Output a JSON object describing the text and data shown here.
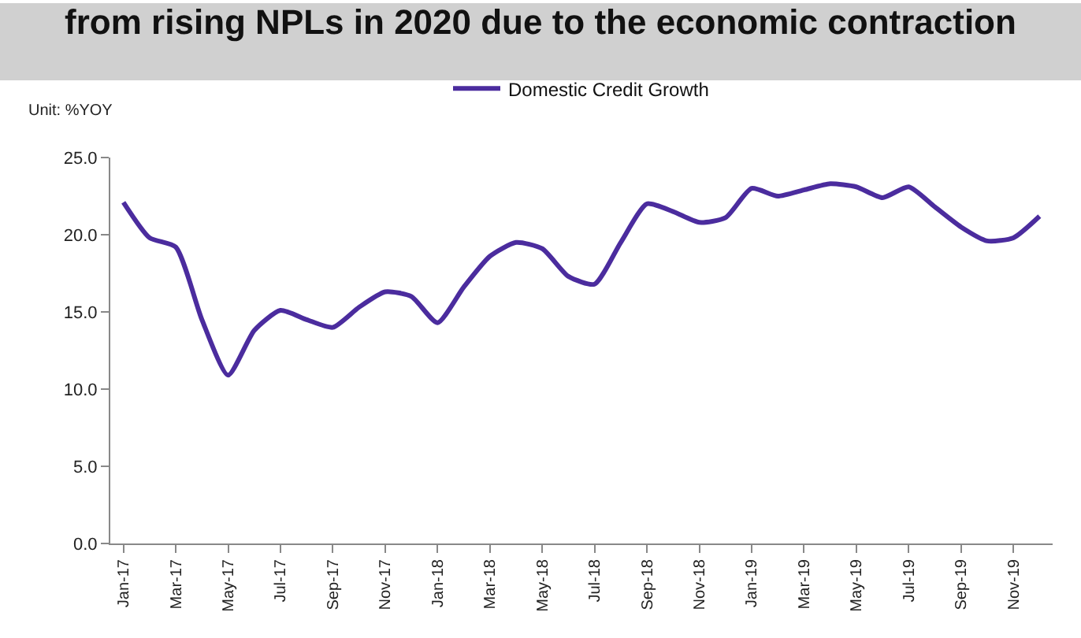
{
  "chart_data": {
    "type": "line",
    "title": "from rising NPLs in 2020 due to the economic contraction",
    "ylabel": "Unit: %YOY",
    "categories": [
      "Jan-17",
      null,
      "Mar-17",
      null,
      "May-17",
      null,
      "Jul-17",
      null,
      "Sep-17",
      null,
      "Nov-17",
      null,
      "Jan-18",
      null,
      "Mar-18",
      null,
      "May-18",
      null,
      "Jul-18",
      null,
      "Sep-18",
      null,
      "Nov-18",
      null,
      "Jan-19",
      null,
      "Mar-19",
      null,
      "May-19",
      null,
      "Jul-19",
      null,
      "Sep-19",
      null,
      "Nov-19",
      null
    ],
    "series": [
      {
        "name": "Domestic Credit Growth",
        "color": "#4b2c9e",
        "values": [
          22.1,
          19.8,
          19.2,
          14.5,
          10.9,
          13.8,
          15.1,
          14.5,
          14.0,
          15.3,
          16.3,
          16.0,
          14.3,
          16.6,
          18.6,
          19.5,
          19.1,
          17.3,
          16.8,
          19.5,
          22.0,
          21.5,
          20.8,
          21.1,
          23.0,
          22.5,
          22.9,
          23.3,
          23.1,
          22.4,
          23.1,
          21.8,
          20.5,
          19.6,
          19.8,
          21.2
        ]
      }
    ],
    "ylim": [
      0,
      25
    ],
    "yticks": [
      {
        "value": 0,
        "label": "0.0"
      },
      {
        "value": 5,
        "label": "5.0"
      },
      {
        "value": 10,
        "label": "10.0"
      },
      {
        "value": 15,
        "label": "15.0"
      },
      {
        "value": 20,
        "label": "20.0"
      },
      {
        "value": 25,
        "label": "25.0"
      }
    ],
    "legend": "top",
    "marker": "none",
    "line_style": "solid"
  }
}
